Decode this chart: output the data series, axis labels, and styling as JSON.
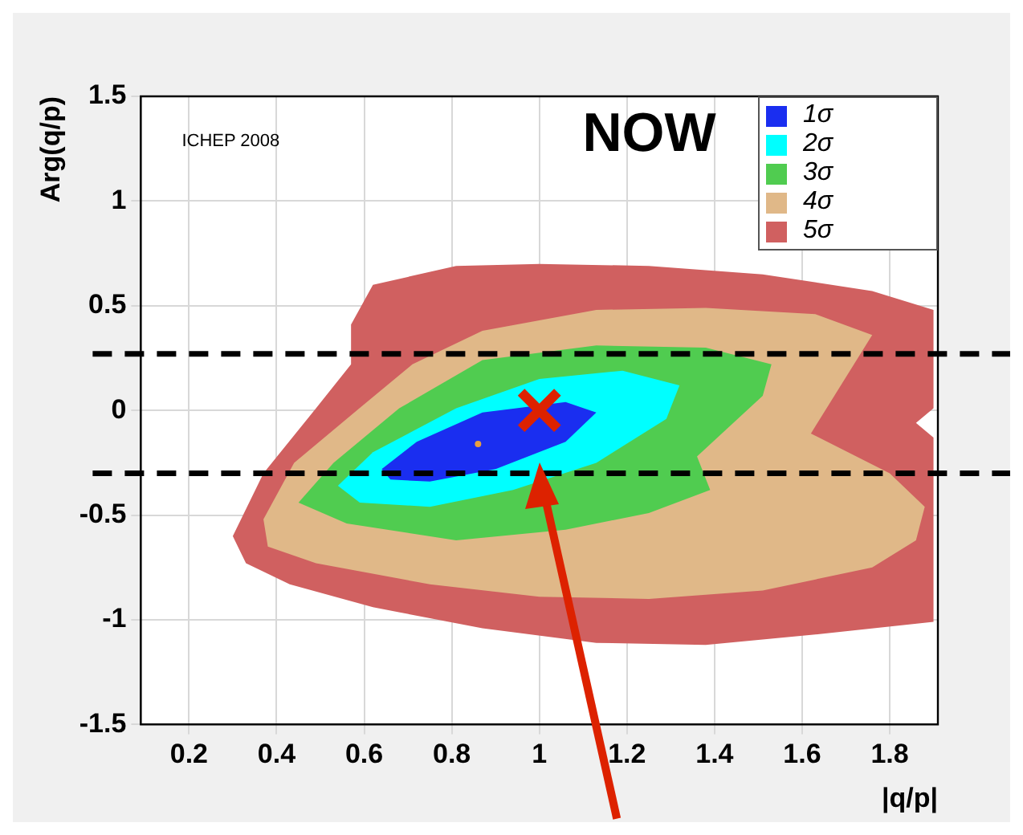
{
  "chart_data": {
    "type": "area",
    "xlabel": "|q/p|",
    "ylabel": "Arg(q/p)",
    "annotations": [
      "NOW",
      "ICHEP 2008"
    ],
    "xlim": [
      0.09,
      1.91
    ],
    "ylim": [
      -1.5,
      1.5
    ],
    "xticks": [
      0.2,
      0.4,
      0.6,
      0.8,
      1,
      1.2,
      1.4,
      1.6,
      1.8
    ],
    "yticks": [
      -1.5,
      -1,
      -0.5,
      0,
      0.5,
      1,
      1.5
    ],
    "grid": true,
    "legend": "top right",
    "series": [
      {
        "name": "1σ",
        "color": "#1a2ef0",
        "x": [
          0.64,
          0.72,
          0.87,
          1.06,
          1.13,
          1.06,
          0.9,
          0.75,
          0.66
        ],
        "values": [
          -0.28,
          -0.15,
          -0.01,
          0.04,
          -0.01,
          -0.15,
          -0.28,
          -0.34,
          -0.33
        ]
      },
      {
        "name": "2σ",
        "color": "#00ffff",
        "x": [
          0.54,
          0.62,
          0.81,
          1.0,
          1.19,
          1.32,
          1.29,
          1.13,
          0.94,
          0.75,
          0.59
        ],
        "values": [
          -0.36,
          -0.2,
          0.01,
          0.15,
          0.19,
          0.12,
          -0.04,
          -0.25,
          -0.38,
          -0.46,
          -0.44
        ]
      },
      {
        "name": "3σ",
        "color": "#50cc50",
        "x": [
          0.45,
          0.53,
          0.68,
          0.87,
          1.13,
          1.38,
          1.53,
          1.51,
          1.36,
          1.39,
          1.25,
          1.06,
          0.81,
          0.56
        ],
        "values": [
          -0.44,
          -0.25,
          0.01,
          0.24,
          0.31,
          0.3,
          0.22,
          0.07,
          -0.22,
          -0.38,
          -0.49,
          -0.57,
          -0.62,
          -0.54
        ]
      },
      {
        "name": "4σ",
        "color": "#e0b888",
        "x": [
          0.37,
          0.44,
          0.56,
          0.71,
          0.87,
          1.13,
          1.38,
          1.63,
          1.76,
          1.62,
          1.8,
          1.88,
          1.86,
          1.76,
          1.51,
          1.25,
          1.0,
          0.75,
          0.49,
          0.38
        ],
        "values": [
          -0.52,
          -0.25,
          -0.04,
          0.22,
          0.38,
          0.48,
          0.49,
          0.46,
          0.36,
          -0.11,
          -0.3,
          -0.46,
          -0.62,
          -0.75,
          -0.86,
          -0.9,
          -0.89,
          -0.83,
          -0.73,
          -0.65
        ]
      },
      {
        "name": "5σ",
        "color": "#d06060",
        "x": [
          0.3,
          0.37,
          0.49,
          0.57,
          0.57,
          0.62,
          0.81,
          1.0,
          1.25,
          1.51,
          1.76,
          1.9,
          1.9,
          1.86,
          1.9,
          1.9,
          1.63,
          1.38,
          1.13,
          0.87,
          0.62,
          0.43,
          0.33
        ],
        "values": [
          -0.6,
          -0.3,
          0.01,
          0.22,
          0.41,
          0.6,
          0.69,
          0.7,
          0.69,
          0.65,
          0.57,
          0.48,
          0.01,
          -0.06,
          -0.13,
          -1.01,
          -1.07,
          -1.12,
          -1.11,
          -1.04,
          -0.94,
          -0.83,
          -0.73
        ]
      },
      {
        "type": "scatter",
        "color": "#dd2200",
        "marker": "cross",
        "x": [
          1
        ],
        "values": [
          0
        ]
      },
      {
        "type": "scatter",
        "color": "#e8a040",
        "marker": "circle",
        "x": [
          0.86
        ],
        "values": [
          -0.16
        ]
      }
    ],
    "ref_lines": [
      {
        "axis": "y",
        "value": 0.27,
        "color": "#000000",
        "line_style": "dashed"
      },
      {
        "axis": "y",
        "value": -0.3,
        "color": "#000000",
        "line_style": "dashed"
      }
    ]
  }
}
